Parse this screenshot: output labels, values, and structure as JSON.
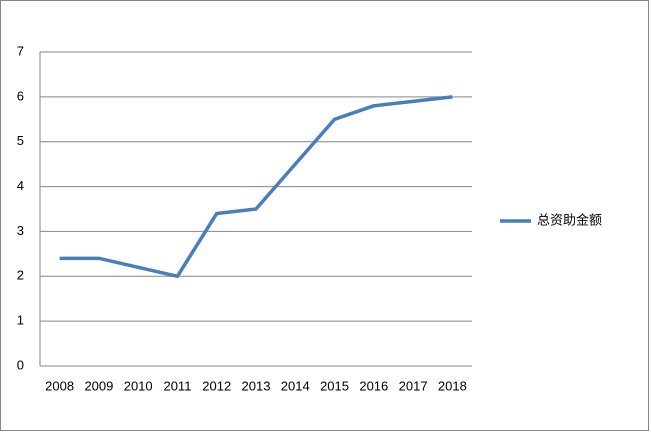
{
  "chart_data": {
    "type": "line",
    "categories": [
      "2008",
      "2009",
      "2010",
      "2011",
      "2012",
      "2013",
      "2014",
      "2015",
      "2016",
      "2017",
      "2018"
    ],
    "series": [
      {
        "name": "总资助金额",
        "color": "#4a7ebb",
        "values": [
          2.4,
          2.4,
          2.2,
          2.0,
          3.4,
          3.5,
          4.5,
          5.5,
          5.8,
          5.9,
          6.0
        ]
      }
    ],
    "ylim": [
      0,
      7
    ],
    "yticks": [
      0,
      1,
      2,
      3,
      4,
      5,
      6,
      7
    ],
    "grid": true,
    "legend": "right"
  }
}
